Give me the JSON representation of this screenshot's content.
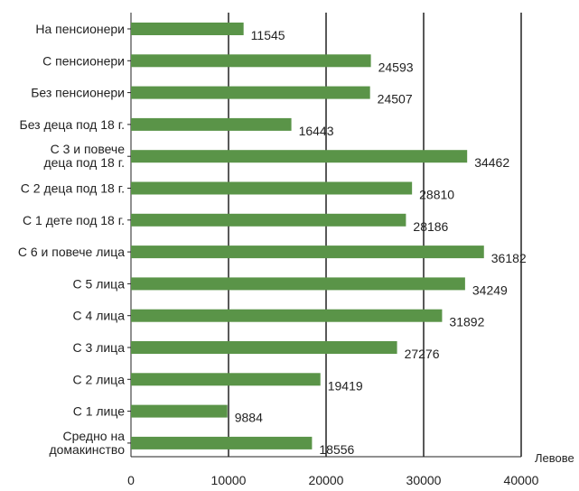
{
  "chart_data": {
    "type": "bar",
    "orientation": "horizontal",
    "categories": [
      [
        "На  пенсионери"
      ],
      [
        "С пенсионери"
      ],
      [
        "Без пенсионери"
      ],
      [
        "Без деца под 18 г."
      ],
      [
        "С 3 и повече",
        "деца под 18 г."
      ],
      [
        "С 2 деца под 18 г."
      ],
      [
        "С 1 дете под 18 г."
      ],
      [
        "С 6 и повече лица"
      ],
      [
        "С 5 лица"
      ],
      [
        "С 4 лица"
      ],
      [
        "С 3 лица"
      ],
      [
        "С 2 лица"
      ],
      [
        "С 1 лице"
      ],
      [
        "Средно на",
        "домакинство"
      ]
    ],
    "values": [
      11545,
      24593,
      24507,
      16443,
      34462,
      28810,
      28186,
      36182,
      34249,
      31892,
      27276,
      19419,
      9884,
      18556
    ],
    "xlim": [
      0,
      40000
    ],
    "xticks": [
      0,
      10000,
      20000,
      30000,
      40000
    ],
    "xlabel": "Левове",
    "grid": "vertical",
    "bar_color": "#5a9448",
    "grid_color": "#222222"
  }
}
